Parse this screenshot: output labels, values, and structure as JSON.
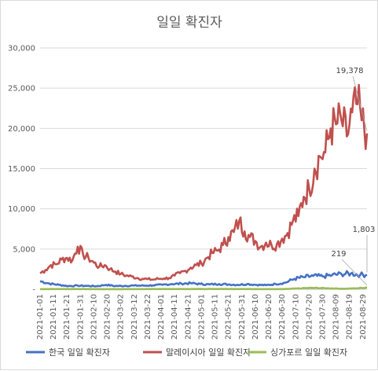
{
  "chart_data": {
    "type": "line",
    "title": "일일 확진자",
    "xlabel": "",
    "ylabel": "",
    "ylim": [
      0,
      30000
    ],
    "y_ticks": [
      "-",
      "5,000",
      "10,000",
      "15,000",
      "20,000",
      "25,000",
      "30,000"
    ],
    "y_tick_values": [
      0,
      5000,
      10000,
      15000,
      20000,
      25000,
      30000
    ],
    "x_start": "2021-01-01",
    "x_end": "2021-09-01",
    "x_ticks": [
      "2021-01-01",
      "2021-01-11",
      "2021-01-21",
      "2021-01-31",
      "2021-02-10",
      "2021-02-20",
      "2021-03-02",
      "2021-03-12",
      "2021-03-22",
      "2021-04-01",
      "2021-04-11",
      "2021-04-21",
      "2021-05-01",
      "2021-05-11",
      "2021-05-21",
      "2021-05-31",
      "2021-06-10",
      "2021-06-20",
      "2021-06-30",
      "2021-07-10",
      "2021-07-20",
      "2021-07-30",
      "2021-08-09",
      "2021-08-19",
      "2021-08-29"
    ],
    "grid": true,
    "legend_position": "bottom",
    "series": [
      {
        "name": "한국 일일 확진자",
        "color": "#4472c4",
        "points": [
          [
            "2021-01-01",
            1000
          ],
          [
            "2021-01-08",
            700
          ],
          [
            "2021-01-15",
            550
          ],
          [
            "2021-01-22",
            400
          ],
          [
            "2021-01-29",
            450
          ],
          [
            "2021-02-05",
            420
          ],
          [
            "2021-02-12",
            380
          ],
          [
            "2021-02-19",
            550
          ],
          [
            "2021-02-26",
            400
          ],
          [
            "2021-03-05",
            420
          ],
          [
            "2021-03-12",
            460
          ],
          [
            "2021-03-19",
            450
          ],
          [
            "2021-03-26",
            490
          ],
          [
            "2021-04-02",
            550
          ],
          [
            "2021-04-09",
            650
          ],
          [
            "2021-04-16",
            700
          ],
          [
            "2021-04-23",
            750
          ],
          [
            "2021-04-30",
            650
          ],
          [
            "2021-05-07",
            600
          ],
          [
            "2021-05-14",
            650
          ],
          [
            "2021-05-21",
            600
          ],
          [
            "2021-05-28",
            550
          ],
          [
            "2021-06-04",
            650
          ],
          [
            "2021-06-11",
            550
          ],
          [
            "2021-06-18",
            500
          ],
          [
            "2021-06-25",
            650
          ],
          [
            "2021-07-02",
            800
          ],
          [
            "2021-07-09",
            1300
          ],
          [
            "2021-07-16",
            1500
          ],
          [
            "2021-07-23",
            1650
          ],
          [
            "2021-07-30",
            1600
          ],
          [
            "2021-08-06",
            1750
          ],
          [
            "2021-08-13",
            1900
          ],
          [
            "2021-08-20",
            1950
          ],
          [
            "2021-08-27",
            1800
          ],
          [
            "2021-09-01",
            1803
          ]
        ]
      },
      {
        "name": "말레이시아 일일 확진자",
        "color": "#c0504d",
        "points": [
          [
            "2021-01-01",
            2000
          ],
          [
            "2021-01-05",
            2400
          ],
          [
            "2021-01-09",
            3000
          ],
          [
            "2021-01-13",
            3100
          ],
          [
            "2021-01-17",
            3700
          ],
          [
            "2021-01-21",
            3900
          ],
          [
            "2021-01-25",
            3600
          ],
          [
            "2021-01-29",
            5300
          ],
          [
            "2021-02-02",
            4300
          ],
          [
            "2021-02-06",
            3900
          ],
          [
            "2021-02-10",
            3300
          ],
          [
            "2021-02-14",
            2800
          ],
          [
            "2021-02-18",
            3000
          ],
          [
            "2021-02-22",
            2500
          ],
          [
            "2021-02-26",
            2200
          ],
          [
            "2021-03-02",
            1900
          ],
          [
            "2021-03-06",
            1700
          ],
          [
            "2021-03-10",
            1600
          ],
          [
            "2021-03-14",
            1400
          ],
          [
            "2021-03-18",
            1300
          ],
          [
            "2021-03-22",
            1250
          ],
          [
            "2021-03-26",
            1200
          ],
          [
            "2021-03-30",
            1300
          ],
          [
            "2021-04-03",
            1350
          ],
          [
            "2021-04-07",
            1400
          ],
          [
            "2021-04-11",
            1700
          ],
          [
            "2021-04-15",
            2000
          ],
          [
            "2021-04-19",
            2300
          ],
          [
            "2021-04-23",
            2700
          ],
          [
            "2021-04-27",
            3000
          ],
          [
            "2021-05-01",
            3200
          ],
          [
            "2021-05-05",
            3900
          ],
          [
            "2021-05-09",
            4500
          ],
          [
            "2021-05-13",
            4800
          ],
          [
            "2021-05-17",
            5500
          ],
          [
            "2021-05-21",
            6500
          ],
          [
            "2021-05-25",
            7100
          ],
          [
            "2021-05-29",
            8500
          ],
          [
            "2021-06-02",
            7200
          ],
          [
            "2021-06-06",
            6500
          ],
          [
            "2021-06-10",
            6000
          ],
          [
            "2021-06-14",
            5300
          ],
          [
            "2021-06-18",
            5800
          ],
          [
            "2021-06-22",
            5500
          ],
          [
            "2021-06-26",
            5600
          ],
          [
            "2021-06-30",
            6300
          ],
          [
            "2021-07-04",
            7000
          ],
          [
            "2021-07-08",
            8500
          ],
          [
            "2021-07-12",
            9100
          ],
          [
            "2021-07-16",
            11500
          ],
          [
            "2021-07-20",
            12500
          ],
          [
            "2021-07-24",
            15000
          ],
          [
            "2021-07-28",
            16500
          ],
          [
            "2021-08-01",
            17000
          ],
          [
            "2021-08-05",
            20000
          ],
          [
            "2021-08-09",
            20500
          ],
          [
            "2021-08-13",
            21000
          ],
          [
            "2021-08-17",
            19000
          ],
          [
            "2021-08-21",
            22000
          ],
          [
            "2021-08-25",
            23000
          ],
          [
            "2021-08-28",
            21000
          ],
          [
            "2021-09-01",
            19378
          ]
        ]
      },
      {
        "name": "싱가포르 일일 확진자",
        "color": "#9bbb59",
        "points": [
          [
            "2021-01-01",
            20
          ],
          [
            "2021-01-15",
            30
          ],
          [
            "2021-02-01",
            25
          ],
          [
            "2021-02-15",
            15
          ],
          [
            "2021-03-01",
            15
          ],
          [
            "2021-03-15",
            20
          ],
          [
            "2021-04-01",
            30
          ],
          [
            "2021-04-15",
            25
          ],
          [
            "2021-05-01",
            30
          ],
          [
            "2021-05-15",
            40
          ],
          [
            "2021-06-01",
            25
          ],
          [
            "2021-06-15",
            20
          ],
          [
            "2021-07-01",
            15
          ],
          [
            "2021-07-15",
            120
          ],
          [
            "2021-07-22",
            170
          ],
          [
            "2021-08-01",
            130
          ],
          [
            "2021-08-15",
            60
          ],
          [
            "2021-08-25",
            120
          ],
          [
            "2021-09-01",
            219
          ]
        ]
      }
    ],
    "annotations": [
      {
        "text": "19,378",
        "series": 1
      },
      {
        "text": "219",
        "series": 2
      },
      {
        "text": "1,803",
        "series": 0
      }
    ]
  }
}
